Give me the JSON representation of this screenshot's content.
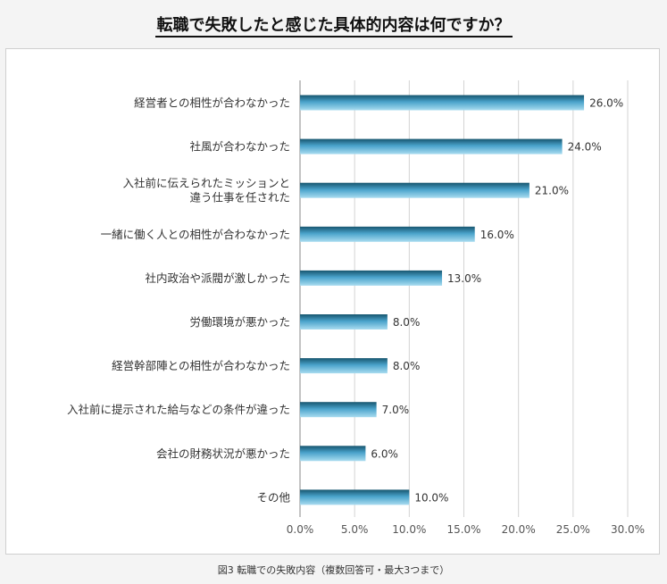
{
  "title": "転職で失敗したと感じた具体的内容は何ですか？",
  "caption": "図3 転職での失敗内容（複数回答可・最大3つまで）",
  "colors": {
    "bar_top": "#17566f",
    "bar_mid": "#4aa3cb",
    "bar_bottom": "#a9dcf0",
    "grid": "#d3d3d3",
    "axis": "#888888"
  },
  "chart_data": {
    "type": "bar",
    "orientation": "horizontal",
    "categories": [
      [
        "経営者との相性が合わなかった"
      ],
      [
        "社風が合わなかった"
      ],
      [
        "入社前に伝えられたミッションと",
        "違う仕事を任された"
      ],
      [
        "一緒に働く人との相性が合わなかった"
      ],
      [
        "社内政治や派閥が激しかった"
      ],
      [
        "労働環境が悪かった"
      ],
      [
        "経営幹部陣との相性が合わなかった"
      ],
      [
        "入社前に提示された給与などの条件が違った"
      ],
      [
        "会社の財務状況が悪かった"
      ],
      [
        "その他"
      ]
    ],
    "values": [
      26.0,
      24.0,
      21.0,
      16.0,
      13.0,
      8.0,
      8.0,
      7.0,
      6.0,
      10.0
    ],
    "value_labels": [
      "26.0%",
      "24.0%",
      "21.0%",
      "16.0%",
      "13.0%",
      "8.0%",
      "8.0%",
      "7.0%",
      "6.0%",
      "10.0%"
    ],
    "xlim": [
      0,
      30
    ],
    "xticks": [
      0,
      5,
      10,
      15,
      20,
      25,
      30
    ],
    "xtick_labels": [
      "0.0%",
      "5.0%",
      "10.0%",
      "15.0%",
      "20.0%",
      "25.0%",
      "30.0%"
    ],
    "grid": true,
    "legend": "none"
  }
}
